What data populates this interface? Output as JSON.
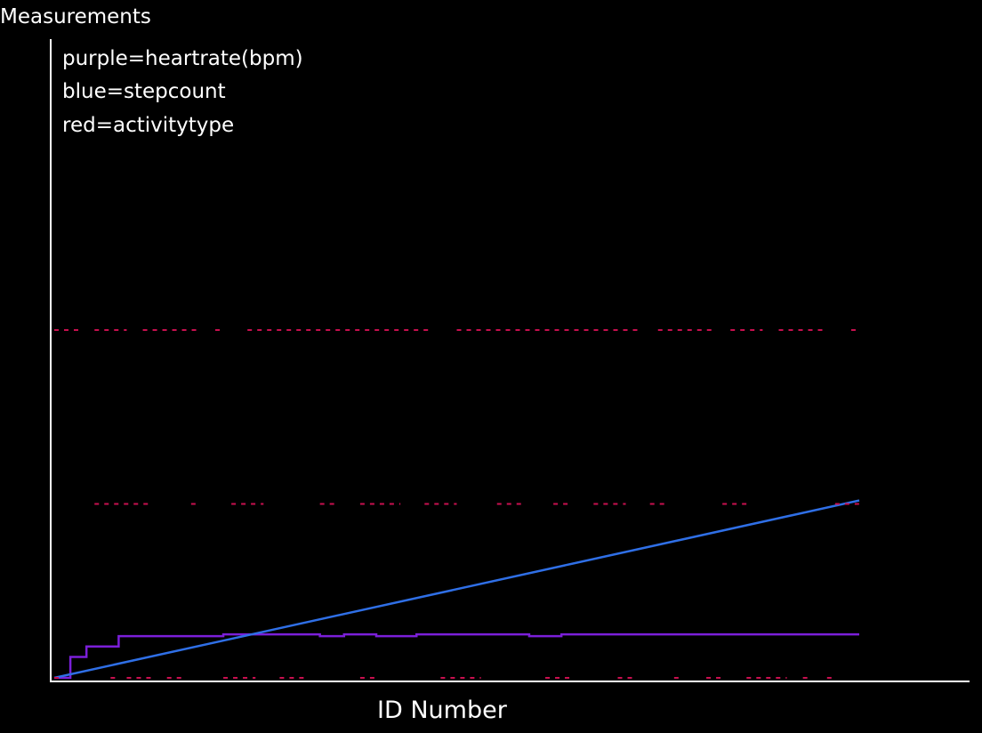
{
  "chart_data": {
    "type": "line",
    "title": "",
    "xlabel": "ID Number",
    "ylabel": "Measurements",
    "legend": [
      "purple=heartrate(bpm)",
      "blue=stepcount",
      "red=activitytype"
    ],
    "grid": false,
    "legend_placement": "top-left",
    "xlim": [
      0,
      100
    ],
    "ylim": [
      0,
      100
    ],
    "colors": {
      "background": "#000000",
      "axes": "#ffffff",
      "heartrate": "#7b1fd9",
      "stepcount": "#2f6fe6",
      "activitytype": "#c8104f"
    },
    "series": [
      {
        "name": "heartrate(bpm)",
        "color": "#7b1fd9",
        "style": "step",
        "points": [
          [
            0,
            0
          ],
          [
            2,
            0
          ],
          [
            2,
            6
          ],
          [
            4,
            6
          ],
          [
            4,
            9
          ],
          [
            8,
            9
          ],
          [
            8,
            12
          ],
          [
            21,
            12
          ],
          [
            21,
            12.5
          ],
          [
            33,
            12.5
          ],
          [
            33,
            12
          ],
          [
            36,
            12
          ],
          [
            36,
            12.5
          ],
          [
            40,
            12.5
          ],
          [
            40,
            12
          ],
          [
            45,
            12
          ],
          [
            45,
            12.5
          ],
          [
            59,
            12.5
          ],
          [
            59,
            12
          ],
          [
            63,
            12
          ],
          [
            63,
            12.5
          ],
          [
            100,
            12.5
          ]
        ]
      },
      {
        "name": "stepcount",
        "color": "#2f6fe6",
        "style": "line",
        "points": [
          [
            0,
            0
          ],
          [
            100,
            51
          ]
        ]
      },
      {
        "name": "activitytype",
        "color": "#c8104f",
        "style": "dashed-levels",
        "levels": [
          {
            "y": 100,
            "segments": [
              [
                0,
                3
              ],
              [
                5,
                9
              ],
              [
                11,
                18
              ],
              [
                20,
                21
              ],
              [
                24,
                47
              ],
              [
                50,
                73
              ],
              [
                75,
                82
              ],
              [
                84,
                88
              ],
              [
                90,
                96
              ],
              [
                99,
                100
              ]
            ]
          },
          {
            "y": 50,
            "segments": [
              [
                5,
                12
              ],
              [
                17,
                18
              ],
              [
                22,
                26
              ],
              [
                33,
                35
              ],
              [
                38,
                43
              ],
              [
                46,
                50
              ],
              [
                55,
                58
              ],
              [
                62,
                64
              ],
              [
                67,
                71
              ],
              [
                74,
                76
              ],
              [
                83,
                86
              ],
              [
                97,
                100
              ]
            ]
          },
          {
            "y": 0,
            "segments": [
              [
                0,
                1
              ],
              [
                7,
                8
              ],
              [
                9,
                12
              ],
              [
                14,
                16
              ],
              [
                21,
                25
              ],
              [
                28,
                31
              ],
              [
                38,
                40
              ],
              [
                48,
                53
              ],
              [
                61,
                64
              ],
              [
                70,
                72
              ],
              [
                77,
                78
              ],
              [
                81,
                83
              ],
              [
                86,
                91
              ],
              [
                93,
                94
              ],
              [
                96,
                97
              ]
            ]
          }
        ]
      }
    ]
  }
}
